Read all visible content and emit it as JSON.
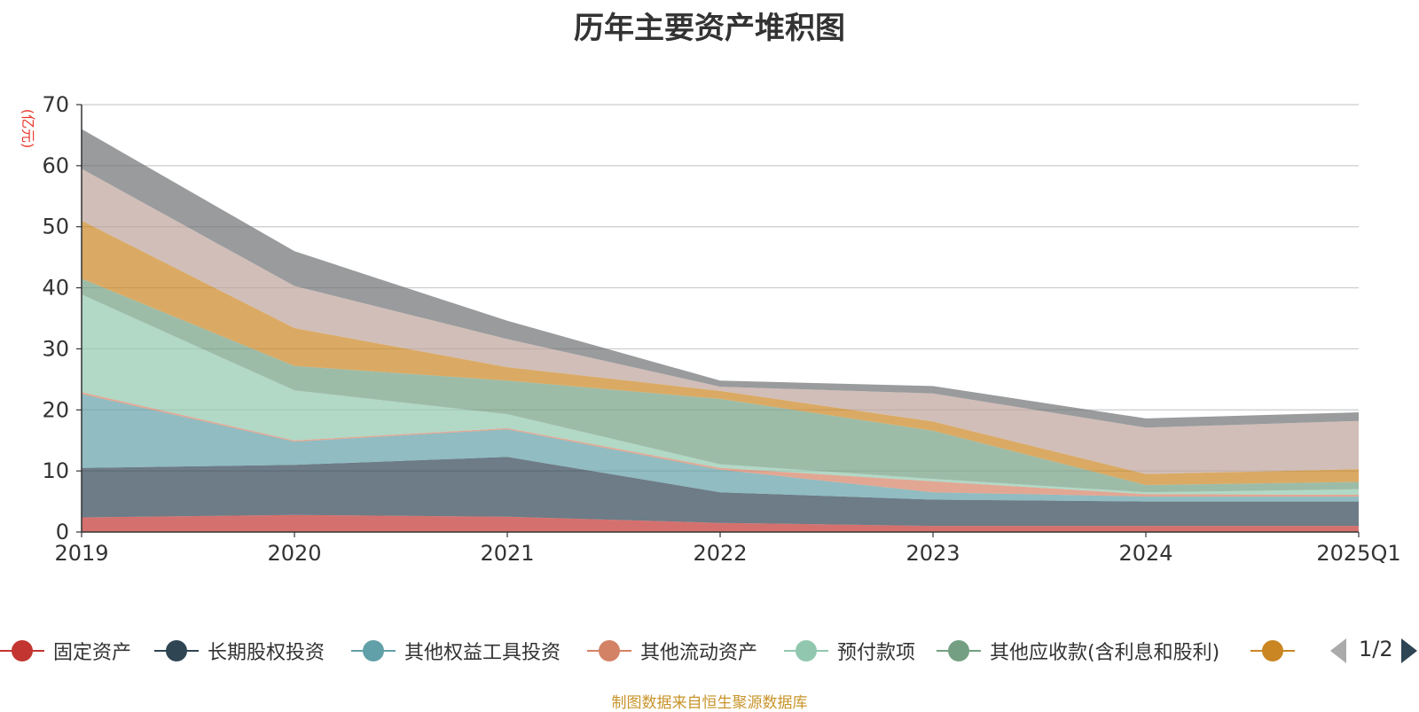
{
  "chart_data": {
    "type": "area",
    "stacked": true,
    "title": "历年主要资产堆积图",
    "ylabel": "(亿元)",
    "ylim": [
      0,
      70
    ],
    "yticks": [
      0,
      10,
      20,
      30,
      40,
      50,
      60,
      70
    ],
    "categories": [
      "2019",
      "2020",
      "2021",
      "2022",
      "2023",
      "2024",
      "2025Q1"
    ],
    "grid": true,
    "legend_position": "bottom",
    "series": [
      {
        "name": "固定资产",
        "color": "#c23531",
        "values": [
          2.4,
          2.8,
          2.5,
          1.5,
          1.0,
          1.0,
          1.0
        ]
      },
      {
        "name": "长期股权投资",
        "color": "#2f4554",
        "values": [
          8.1,
          8.2,
          9.8,
          5.0,
          4.3,
          4.0,
          4.0
        ]
      },
      {
        "name": "其他权益工具投资",
        "color": "#61a0a8",
        "values": [
          12.1,
          3.8,
          4.5,
          3.7,
          1.2,
          0.8,
          0.8
        ]
      },
      {
        "name": "其他流动资产",
        "color": "#d48265",
        "values": [
          0.3,
          0.2,
          0.2,
          0.3,
          1.8,
          0.4,
          0.3
        ]
      },
      {
        "name": "预付款项",
        "color": "#91c7ae",
        "values": [
          16.0,
          8.2,
          2.3,
          0.6,
          0.4,
          0.3,
          0.9
        ]
      },
      {
        "name": "其他应收款(含利息和股利)",
        "color": "#749f83",
        "values": [
          2.6,
          4.0,
          5.5,
          10.7,
          7.9,
          1.2,
          1.2
        ]
      },
      {
        "name": "",
        "color": "#ca8622",
        "values": [
          9.5,
          6.2,
          2.2,
          1.3,
          1.5,
          1.8,
          2.1
        ]
      },
      {
        "name": "",
        "color": "#bda29a",
        "values": [
          8.5,
          6.9,
          4.6,
          0.7,
          4.6,
          7.6,
          7.9
        ]
      },
      {
        "name": "",
        "color": "#6e7074",
        "values": [
          6.5,
          5.7,
          3.0,
          1.0,
          1.2,
          1.5,
          1.4
        ]
      }
    ]
  },
  "legend": {
    "items": [
      {
        "label": "固定资产",
        "color": "#c23531"
      },
      {
        "label": "长期股权投资",
        "color": "#2f4554"
      },
      {
        "label": "其他权益工具投资",
        "color": "#61a0a8"
      },
      {
        "label": "其他流动资产",
        "color": "#d48265"
      },
      {
        "label": "预付款项",
        "color": "#91c7ae"
      },
      {
        "label": "其他应收款(含利息和股利)",
        "color": "#749f83"
      },
      {
        "label": "",
        "color": "#ca8622"
      }
    ],
    "page_indicator": "1/2"
  },
  "footer": {
    "source": "制图数据来自恒生聚源数据库"
  }
}
